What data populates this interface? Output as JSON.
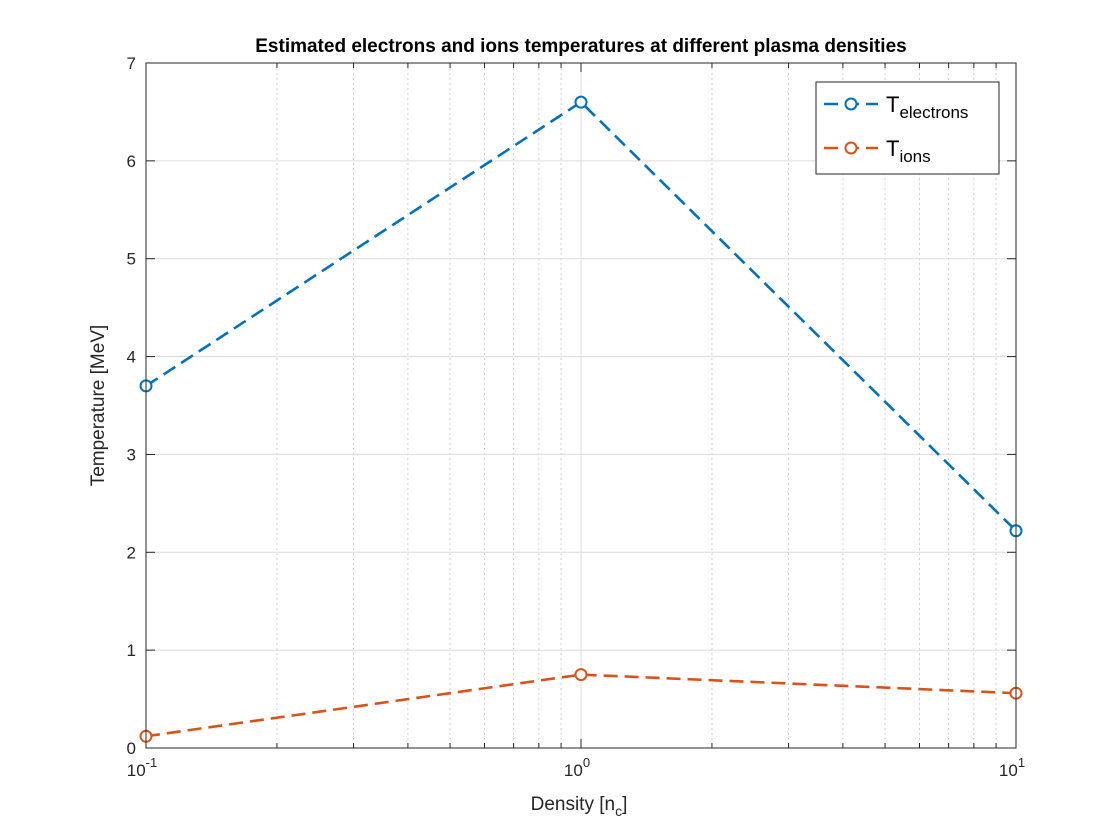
{
  "chart_data": {
    "type": "line",
    "title": "Estimated electrons and ions temperatures at different plasma densities",
    "xlabel": {
      "base": "Density [n",
      "sub": "c",
      "tail": "]"
    },
    "ylabel": "Temperature [MeV]",
    "xscale": "log",
    "xlim": [
      0.1,
      10
    ],
    "ylim": [
      0,
      7
    ],
    "xticks": [
      {
        "value": 0.1,
        "base": "10",
        "exp": "-1"
      },
      {
        "value": 1,
        "base": "10",
        "exp": "0"
      },
      {
        "value": 10,
        "base": "10",
        "exp": "1"
      }
    ],
    "yticks": [
      {
        "value": 0,
        "label": "0"
      },
      {
        "value": 1,
        "label": "1"
      },
      {
        "value": 2,
        "label": "2"
      },
      {
        "value": 3,
        "label": "3"
      },
      {
        "value": 4,
        "label": "4"
      },
      {
        "value": 5,
        "label": "5"
      },
      {
        "value": 6,
        "label": "6"
      },
      {
        "value": 7,
        "label": "7"
      }
    ],
    "grid": true,
    "minor_grid": true,
    "legend_position": "top-right",
    "series": [
      {
        "name_base": "T",
        "name_sub": "electrons",
        "color": "#0072BD",
        "x": [
          0.1,
          1,
          10
        ],
        "y": [
          3.7,
          6.6,
          2.22
        ]
      },
      {
        "name_base": "T",
        "name_sub": "ions",
        "color": "#D95319",
        "x": [
          0.1,
          1,
          10
        ],
        "y": [
          0.12,
          0.75,
          0.56
        ]
      }
    ]
  }
}
